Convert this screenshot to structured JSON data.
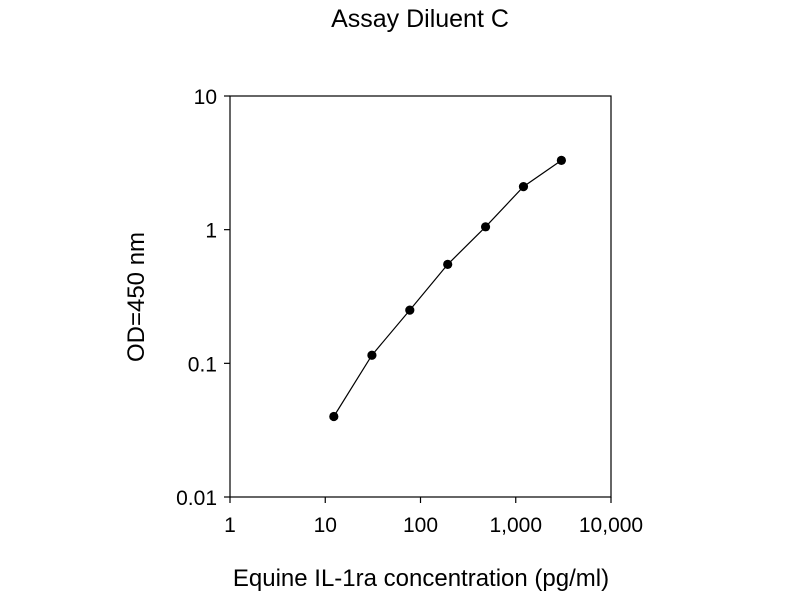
{
  "chart_data": {
    "type": "line",
    "title": "Assay Diluent C",
    "xlabel": "Equine IL-1ra concentration (pg/ml)",
    "ylabel": "OD=450 nm",
    "x_scale": "log",
    "y_scale": "log",
    "xlim": [
      1,
      10000
    ],
    "ylim": [
      0.01,
      10
    ],
    "x_ticks": [
      {
        "value": 1,
        "label": "1"
      },
      {
        "value": 10,
        "label": "10"
      },
      {
        "value": 100,
        "label": "100"
      },
      {
        "value": 1000,
        "label": "1,000"
      },
      {
        "value": 10000,
        "label": "10,000"
      }
    ],
    "y_ticks": [
      {
        "value": 0.01,
        "label": "0.01"
      },
      {
        "value": 0.1,
        "label": "0.1"
      },
      {
        "value": 1,
        "label": "1"
      },
      {
        "value": 10,
        "label": "10"
      }
    ],
    "grid": false,
    "marker": "filled-circle",
    "series": [
      {
        "color": "#000000",
        "x": [
          12.3,
          30.9,
          77.2,
          193,
          482,
          1205,
          3014
        ],
        "values": [
          0.04,
          0.115,
          0.25,
          0.55,
          1.05,
          2.1,
          3.3
        ]
      }
    ]
  }
}
